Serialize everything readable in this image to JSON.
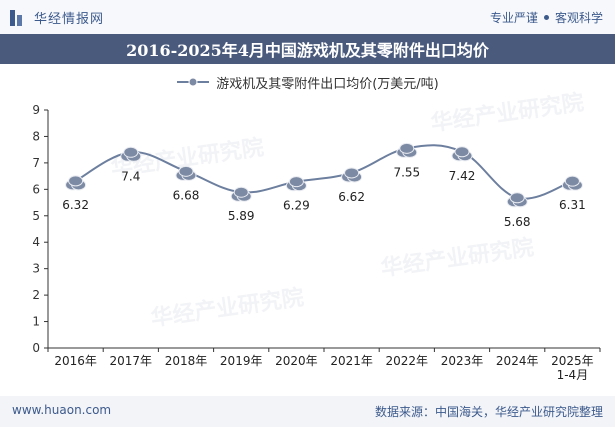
{
  "header": {
    "brand_name": "华经情报网",
    "slogan_left": "专业严谨",
    "slogan_right": "客观科学"
  },
  "title": "2016-2025年4月中国游戏机及其零附件出口均价",
  "legend_label": "游戏机及其零附件出口均价(万美元/吨)",
  "watermark": "华经产业研究院",
  "footer": {
    "website": "www.huaon.com",
    "source": "数据来源：中国海关，华经产业研究院整理"
  },
  "colors": {
    "line": "#6d7f9e",
    "marker": "#7d8aa3",
    "title_bg": "#4a5a7d",
    "brand": "#3d5a8c"
  },
  "chart_data": {
    "type": "line",
    "title": "2016-2025年4月中国游戏机及其零附件出口均价",
    "categories": [
      "2016年",
      "2017年",
      "2018年",
      "2019年",
      "2020年",
      "2021年",
      "2022年",
      "2023年",
      "2024年",
      "2025年\n1-4月"
    ],
    "series": [
      {
        "name": "游戏机及其零附件出口均价(万美元/吨)",
        "values": [
          6.32,
          7.4,
          6.68,
          5.89,
          6.29,
          6.62,
          7.55,
          7.42,
          5.68,
          6.31
        ],
        "labels": [
          "6.32",
          "7.4",
          "6.68",
          "5.89",
          "6.29",
          "6.62",
          "7.55",
          "7.42",
          "5.68",
          "6.31"
        ]
      }
    ],
    "ylim": [
      0,
      9
    ],
    "yticks": [
      "0",
      "1",
      "2",
      "3",
      "4",
      "5",
      "6",
      "7",
      "8",
      "9"
    ],
    "xlabel": "",
    "ylabel": "",
    "grid": false,
    "legend_position": "top-center"
  }
}
